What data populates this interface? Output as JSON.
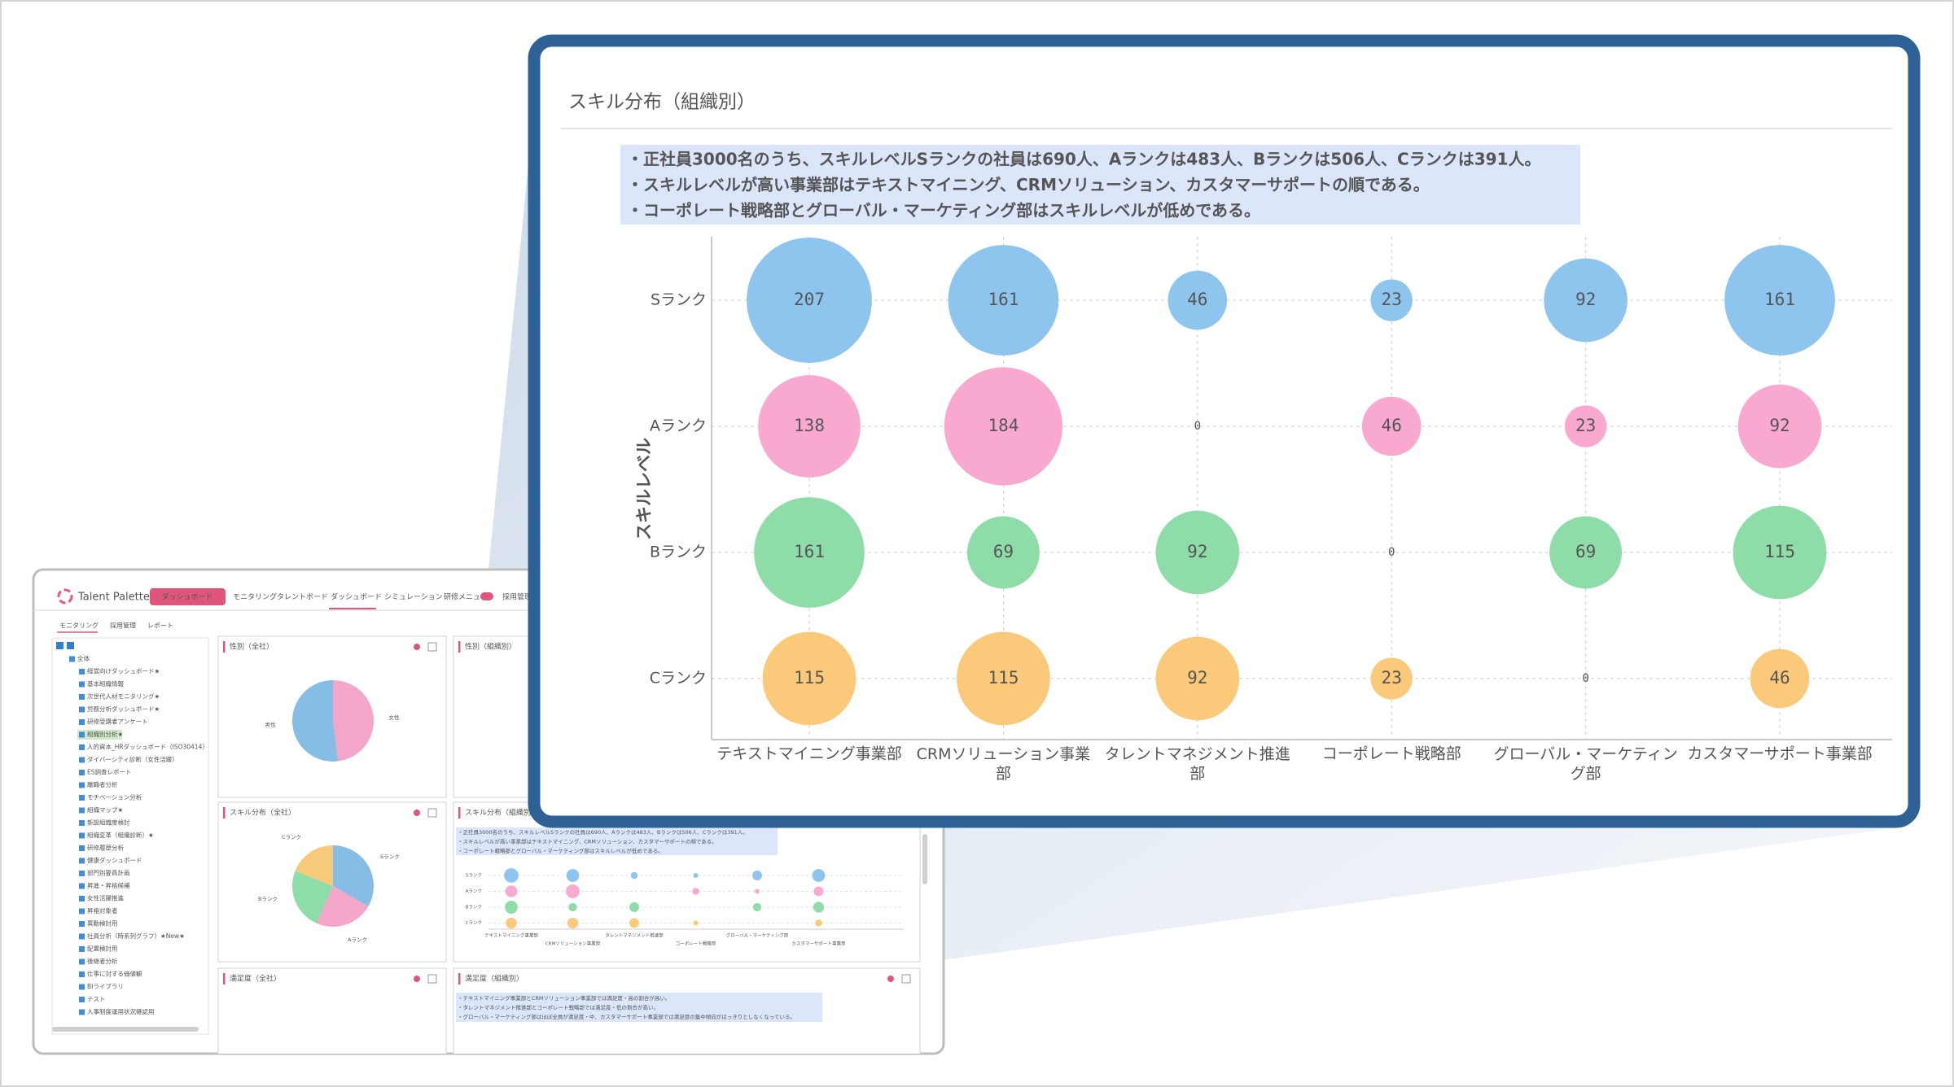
{
  "dashboard": {
    "logo": "Talent Palette",
    "menu_button": "ダッシュボード",
    "nav": [
      "モニタリング",
      "タレントボード",
      "ダッシュボード",
      "シミュレーション",
      "研修メニュー",
      "採用管理"
    ],
    "subtabs": [
      "モニタリング",
      "採用管理",
      "レポート"
    ],
    "tree": [
      "全体",
      "経営向けダッシュボード★",
      "基本組織情報",
      "次世代人材モニタリング★",
      "労務分析ダッシュボード★",
      "研修受講者アンケート",
      "組織別分析★",
      "人的資本_HRダッシュボード（ISO30414）",
      "ダイバーシティ診断（女性活躍）",
      "ES調査レポート",
      "離職者分析",
      "モチベーション分析",
      "組織マップ★",
      "新設組織度検討",
      "組織変革（組織診断）★",
      "研修履歴分析",
      "健康ダッシュボード",
      "部門別要員計画",
      "昇進・昇格候補",
      "女性活躍推進",
      "昇格対象者",
      "異動検討用",
      "社員分析（時系列グラフ）★New★",
      "配置検討用",
      "後継者分析",
      "仕事に対する価値観",
      "BIライブラリ",
      "テスト",
      "人事制度運用状況確認用"
    ],
    "gender_pie": {
      "type": "pie",
      "title": "性別（全社）",
      "categories": [
        "男性",
        "女性"
      ],
      "values": [
        52,
        48
      ],
      "colors": [
        "#86bde6",
        "#f4a6c8"
      ]
    },
    "skill_pie": {
      "type": "pie",
      "title": "スキル分布（全社）",
      "categories": [
        "Sランク",
        "Aランク",
        "Bランク",
        "Cランク"
      ],
      "values": [
        690,
        483,
        506,
        391
      ],
      "colors": [
        "#86bde6",
        "#f4a6c8",
        "#8edda8",
        "#f9c97a"
      ]
    },
    "satisfaction_title": "満足度（全社）",
    "gender_org_title": "性別（組織別）",
    "skill_org_title": "スキル分布（組織別）",
    "satisfaction_org": {
      "title": "満足度（組織別）",
      "notes": [
        "・テキストマイニング事業部とCRMソリューション事業部では満足度・高の割合が高い。",
        "・タレントマネジメント推進部とコーポレート戦略部では満足度・低の割合が高い。",
        "・グローバル・マーケティング部はほぼ全員が満足度・中、カスタマーサポート事業部では満足度の集中傾向がはっきりとしなくなっている。"
      ]
    }
  },
  "chart_data": {
    "type": "bubble",
    "title": "スキル分布（組織別）",
    "notes": [
      "・正社員3000名のうち、スキルレベルSランクの社員は690人、Aランクは483人、Bランクは506人、Cランクは391人。",
      "・スキルレベルが高い事業部はテキストマイニング、CRMソリューション、カスタマーサポートの順である。",
      "・コーポレート戦略部とグローバル・マーケティング部はスキルレベルが低めである。"
    ],
    "y_label": "スキルレベル",
    "categories": [
      "テキストマイニング事業部",
      "CRMソリューション事業部",
      "タレントマネジメント推進部",
      "コーポレート戦略部",
      "グローバル・マーケティング部",
      "カスタマーサポート事業部"
    ],
    "series": [
      {
        "name": "Sランク",
        "color": "#8ec5ee",
        "values": [
          207,
          161,
          46,
          23,
          92,
          161
        ]
      },
      {
        "name": "Aランク",
        "color": "#f9a8cf",
        "values": [
          138,
          184,
          0,
          46,
          23,
          92
        ]
      },
      {
        "name": "Bランク",
        "color": "#8edda8",
        "values": [
          161,
          69,
          92,
          0,
          69,
          115
        ]
      },
      {
        "name": "Cランク",
        "color": "#fbc97a",
        "values": [
          115,
          115,
          92,
          23,
          0,
          46
        ]
      }
    ],
    "grid": true
  }
}
